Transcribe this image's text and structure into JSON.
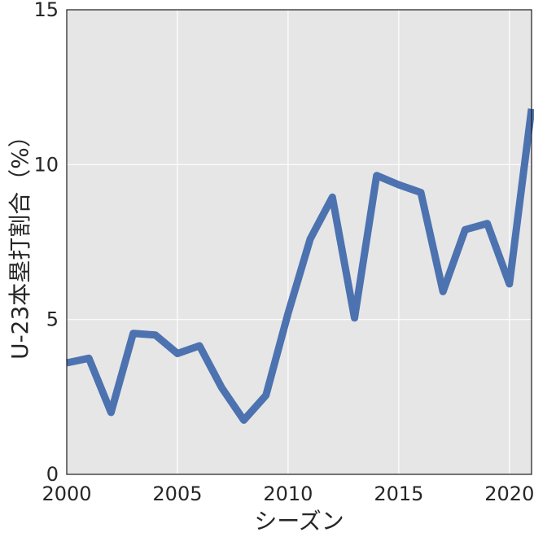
{
  "chart_data": {
    "type": "line",
    "title": "",
    "xlabel": "シーズン",
    "ylabel": "U-23本塁打割合（%）",
    "xlim": [
      2000,
      2021
    ],
    "ylim": [
      0,
      15
    ],
    "xticks": [
      2000,
      2005,
      2010,
      2015,
      2020
    ],
    "yticks": [
      0,
      5,
      10,
      15
    ],
    "grid": true,
    "colors": {
      "line": "#4c72b0",
      "plot_bg": "#e6e6e6",
      "grid": "#ffffff"
    },
    "series": [
      {
        "x": [
          2000,
          2001,
          2002,
          2003,
          2004,
          2005,
          2006,
          2007,
          2008,
          2009,
          2010,
          2011,
          2012,
          2013,
          2014,
          2015,
          2016,
          2017,
          2018,
          2019,
          2020,
          2021
        ],
        "values": [
          3.6,
          3.75,
          2.0,
          4.55,
          4.5,
          3.9,
          4.15,
          2.8,
          1.75,
          2.55,
          5.2,
          7.6,
          8.95,
          5.05,
          9.65,
          9.35,
          9.1,
          5.9,
          7.9,
          8.1,
          6.15,
          11.8
        ]
      }
    ]
  }
}
